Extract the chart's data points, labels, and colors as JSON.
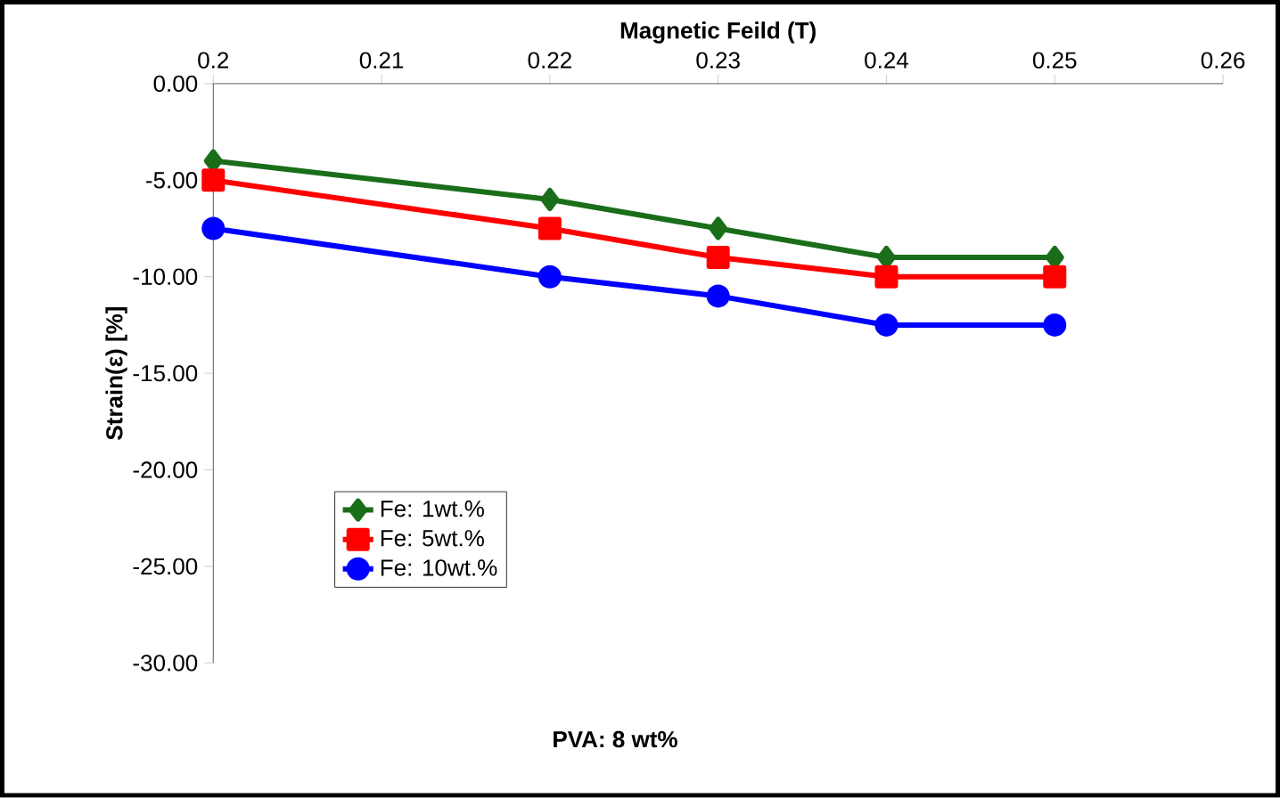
{
  "chart_data": {
    "type": "line",
    "xlabel": "Magnetic Feild (T)",
    "ylabel": "Strain(ε) [%]",
    "annotations": [
      "PVA: 8 wt%"
    ],
    "x": [
      0.2,
      0.22,
      0.23,
      0.24,
      0.25
    ],
    "series": [
      {
        "name": "Fe: 1wt.%",
        "color": "#1a6e1a",
        "marker": "diamond",
        "values": [
          -4,
          -6,
          -7.5,
          -9,
          -9
        ]
      },
      {
        "name": "Fe: 5wt.%",
        "color": "#ff0000",
        "marker": "square",
        "values": [
          -5,
          -7.5,
          -9,
          -10,
          -10
        ]
      },
      {
        "name": "Fe: 10wt.%",
        "color": "#0000ff",
        "marker": "circle",
        "values": [
          -7.5,
          -10,
          -11,
          -12.5,
          -12.5
        ]
      }
    ],
    "xlim": [
      0.2,
      0.26
    ],
    "xticks": [
      0.2,
      0.21,
      0.22,
      0.23,
      0.24,
      0.25,
      0.26
    ],
    "ylim": [
      -30,
      0
    ],
    "yticks": [
      {
        "value": 0,
        "label": "0.00"
      },
      {
        "value": -5,
        "label": "-5.00"
      },
      {
        "value": -10,
        "label": "-10.00"
      },
      {
        "value": -15,
        "label": "-15.00"
      },
      {
        "value": -20,
        "label": "-20.00"
      },
      {
        "value": -25,
        "label": "-25.00"
      },
      {
        "value": -30,
        "label": "-30.00"
      }
    ],
    "legend": "bottom left",
    "line_style": "solid"
  }
}
